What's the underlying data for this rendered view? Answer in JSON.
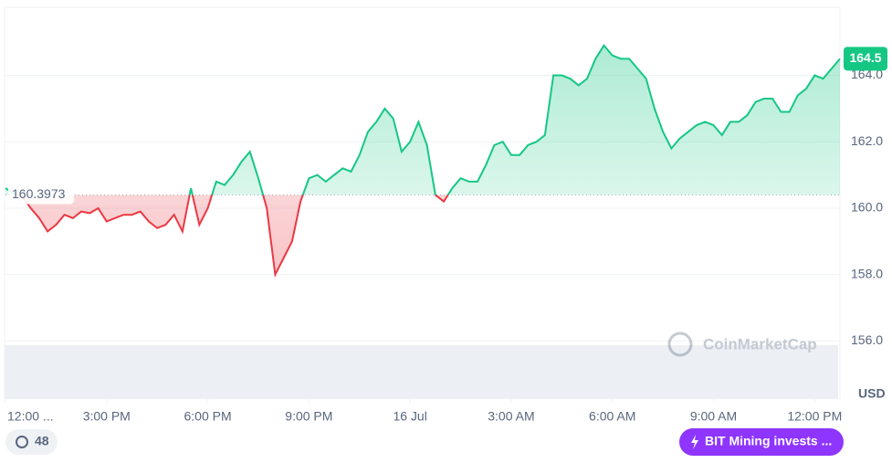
{
  "chart_data": {
    "type": "line",
    "x": [
      0,
      0.25,
      0.5,
      0.75,
      1,
      1.25,
      1.5,
      1.75,
      2,
      2.25,
      2.5,
      2.75,
      3,
      3.25,
      3.5,
      3.75,
      4,
      4.25,
      4.5,
      4.75,
      5,
      5.25,
      5.5,
      5.75,
      6,
      6.25,
      6.5,
      6.75,
      7,
      7.25,
      7.5,
      7.75,
      8,
      8.25,
      8.5,
      8.75,
      9,
      9.25,
      9.5,
      9.75,
      10,
      10.25,
      10.5,
      10.75,
      11,
      11.25,
      11.5,
      11.75,
      12,
      12.25,
      12.5,
      12.75,
      13,
      13.25,
      13.5,
      13.75,
      14,
      14.25,
      14.5,
      14.75,
      15,
      15.25,
      15.5,
      15.75,
      16,
      16.25,
      16.5,
      16.75,
      17,
      17.25,
      17.5,
      17.75,
      18,
      18.25,
      18.5,
      18.75,
      19,
      19.25,
      19.5,
      19.75,
      20,
      20.25,
      20.5,
      20.75,
      21,
      21.25,
      21.5,
      21.75,
      22,
      22.25,
      22.5,
      22.75,
      23,
      23.25,
      23.5,
      23.75,
      24,
      24.25,
      24.5,
      24.75
    ],
    "series": [
      {
        "name": "Price",
        "color": "#16c784",
        "down_color": "#ea3943",
        "values": [
          160.6,
          160.45,
          160.35,
          160.0,
          159.7,
          159.3,
          159.5,
          159.8,
          159.7,
          159.9,
          159.85,
          160.0,
          159.6,
          159.7,
          159.8,
          159.8,
          159.9,
          159.6,
          159.4,
          159.5,
          159.8,
          159.3,
          160.6,
          159.5,
          160.0,
          160.8,
          160.7,
          161.0,
          161.4,
          161.7,
          160.9,
          160.0,
          158.0,
          158.5,
          159.0,
          160.2,
          160.9,
          161.0,
          160.8,
          161.0,
          161.2,
          161.1,
          161.6,
          162.3,
          162.6,
          163.0,
          162.7,
          161.7,
          162.0,
          162.6,
          161.9,
          160.4,
          160.2,
          160.6,
          160.9,
          160.8,
          160.8,
          161.3,
          161.9,
          162.0,
          161.6,
          161.6,
          161.9,
          162.0,
          162.2,
          164.0,
          164.0,
          163.9,
          163.7,
          163.9,
          164.5,
          164.9,
          164.6,
          164.5,
          164.5,
          164.2,
          163.9,
          163.0,
          162.3,
          161.8,
          162.1,
          162.3,
          162.5,
          162.6,
          162.5,
          162.2,
          162.6,
          162.6,
          162.8,
          163.2,
          163.3,
          163.3,
          162.9,
          162.9,
          163.4,
          163.6,
          164.0,
          163.9,
          164.2,
          164.5
        ]
      }
    ],
    "baseline": 160.3973,
    "current_price": 164.5,
    "xlim": [
      0,
      24.75
    ],
    "xticks": [
      {
        "value": 0,
        "label": "12:00 ..."
      },
      {
        "value": 3,
        "label": "3:00 PM"
      },
      {
        "value": 6,
        "label": "6:00 PM"
      },
      {
        "value": 9,
        "label": "9:00 PM"
      },
      {
        "value": 12,
        "label": "16 Jul"
      },
      {
        "value": 15,
        "label": "3:00 AM"
      },
      {
        "value": 18,
        "label": "6:00 AM"
      },
      {
        "value": 21,
        "label": "9:00 AM"
      },
      {
        "value": 24,
        "label": "12:00 PM"
      }
    ],
    "ylim": [
      154.25,
      166.05
    ],
    "yticks": [
      {
        "value": 156,
        "label": "156.0"
      },
      {
        "value": 158,
        "label": "158.0"
      },
      {
        "value": 160,
        "label": "160.0"
      },
      {
        "value": 162,
        "label": "162.0"
      },
      {
        "value": 164,
        "label": "164.0"
      }
    ],
    "y_unit": "USD",
    "grid": true,
    "watermark": "CoinMarketCap",
    "badge_count": "48",
    "news_button": "BIT Mining invests ..."
  }
}
